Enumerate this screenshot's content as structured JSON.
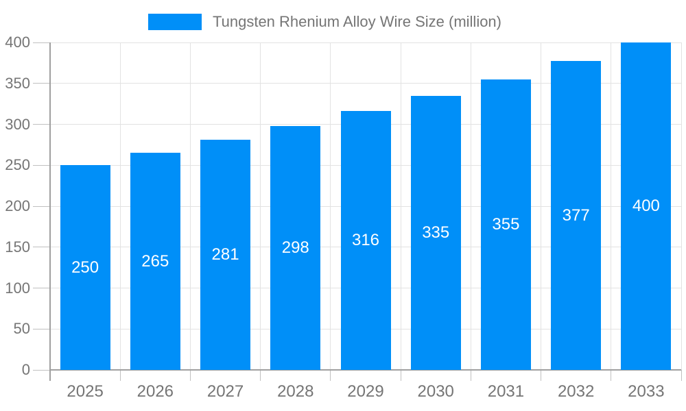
{
  "chart_data": {
    "type": "bar",
    "title": "Tungsten Rhenium Alloy Wire Size (million)",
    "categories": [
      "2025",
      "2026",
      "2027",
      "2028",
      "2029",
      "2030",
      "2031",
      "2032",
      "2033"
    ],
    "values": [
      250,
      265,
      281,
      298,
      316,
      335,
      355,
      377,
      400
    ],
    "xlabel": "",
    "ylabel": "",
    "ylim": [
      0,
      400
    ],
    "yticks": [
      0,
      50,
      100,
      150,
      200,
      250,
      300,
      350,
      400
    ],
    "grid": true,
    "legend_position": "top-center",
    "value_labels": "inside-center",
    "style": {
      "bar_color": "#008ff8",
      "grid_color": "#e2e2e2",
      "tick_color": "#c0c0c0",
      "axis_color": "#9f9f9f",
      "label_color": "#757575",
      "value_label_color": "#ffffff",
      "background": "#ffffff"
    }
  }
}
